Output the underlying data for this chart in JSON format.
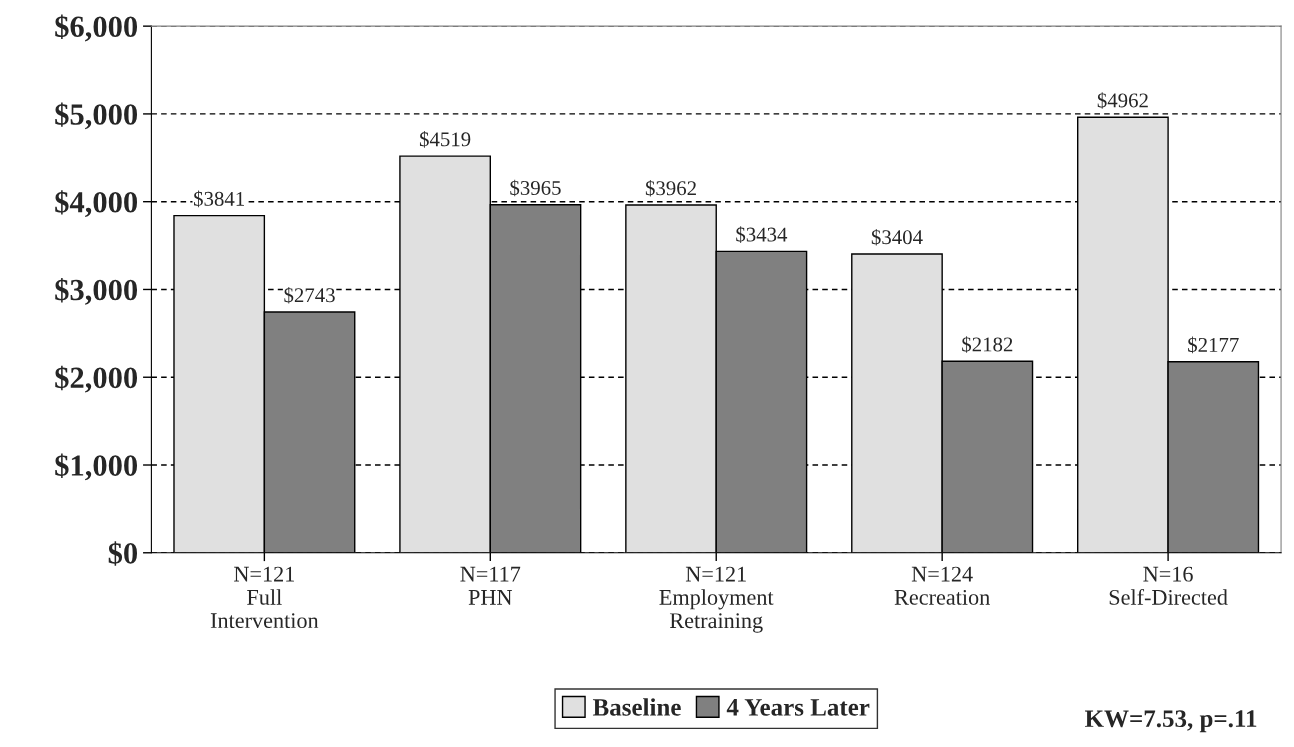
{
  "chart_data": {
    "type": "bar",
    "categories": [
      "N=121\nFull\nIntervention",
      "N=117\nPHN",
      "N=121\nEmployment\nRetraining",
      "N=124\nRecreation",
      "N=16\nSelf-Directed"
    ],
    "series": [
      {
        "name": "Baseline",
        "color": "#e0e0e0",
        "values": [
          3841,
          4519,
          3962,
          3404,
          4962
        ],
        "value_labels": [
          "$3841",
          "$4519",
          "$3962",
          "$3404",
          "$4962"
        ]
      },
      {
        "name": "4 Years Later",
        "color": "#808080",
        "values": [
          2743,
          3965,
          3434,
          2182,
          2177
        ],
        "value_labels": [
          "$2743",
          "$3965",
          "$3434",
          "$2182",
          "$2177"
        ]
      }
    ],
    "ylim": [
      0,
      6000
    ],
    "yticks": [
      {
        "value": 0,
        "label": "$0"
      },
      {
        "value": 1000,
        "label": "$1,000"
      },
      {
        "value": 2000,
        "label": "$2,000"
      },
      {
        "value": 3000,
        "label": "$3,000"
      },
      {
        "value": 4000,
        "label": "$4,000"
      },
      {
        "value": 5000,
        "label": "$5,000"
      },
      {
        "value": 6000,
        "label": "$6,000"
      }
    ],
    "grid": "y",
    "legend": "bottom",
    "annotations": [
      "KW=7.53, p=.11"
    ]
  }
}
